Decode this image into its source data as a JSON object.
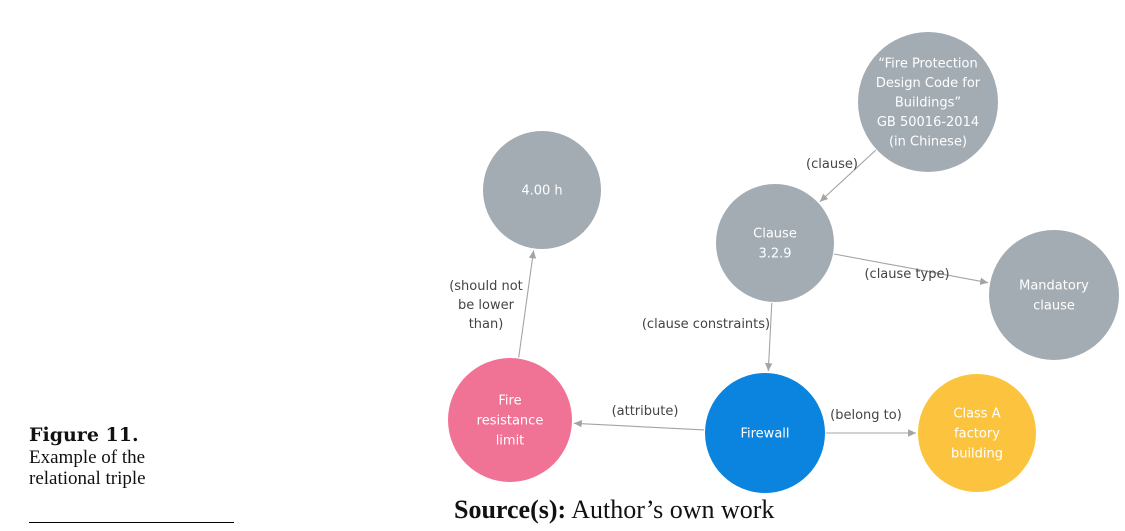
{
  "caption": {
    "title": "Figure 11.",
    "body_lines": [
      "Example of the",
      "relational triple"
    ]
  },
  "source": {
    "label": "Source(s):",
    "text": " Author’s own work"
  },
  "colors": {
    "entity_gray": "#a3abb3",
    "fire_resistance_pink": "#f07396",
    "firewall_blue": "#0a84de",
    "class_a_yellow": "#fcc43e",
    "edge_gray": "#a4a4a4"
  },
  "diagram": {
    "nodes": [
      {
        "id": "code",
        "lines": [
          "“Fire Protection",
          "Design Code for",
          "Buildings”",
          "GB 50016-2014",
          "(in Chinese)"
        ],
        "color_key": "entity_gray"
      },
      {
        "id": "hours",
        "lines": [
          "4.00 h"
        ],
        "color_key": "entity_gray"
      },
      {
        "id": "clause",
        "lines": [
          "Clause",
          "3.2.9"
        ],
        "color_key": "entity_gray"
      },
      {
        "id": "mandatory",
        "lines": [
          "Mandatory",
          "clause"
        ],
        "color_key": "entity_gray"
      },
      {
        "id": "fire-resistance",
        "lines": [
          "Fire",
          "resistance",
          "limit"
        ],
        "color_key": "fire_resistance_pink"
      },
      {
        "id": "firewall",
        "lines": [
          "Firewall"
        ],
        "color_key": "firewall_blue"
      },
      {
        "id": "class-a",
        "lines": [
          "Class A",
          "factory",
          "building"
        ],
        "color_key": "class_a_yellow"
      }
    ],
    "edges": [
      {
        "id": "code-clause",
        "from": "code",
        "to": "clause",
        "lines": [
          "(clause)"
        ]
      },
      {
        "id": "clause-mandatory",
        "from": "clause",
        "to": "mandatory",
        "lines": [
          "(clause type)"
        ]
      },
      {
        "id": "clause-firewall",
        "from": "clause",
        "to": "firewall",
        "lines": [
          "(clause constraints)"
        ]
      },
      {
        "id": "fire-hours",
        "from": "fire-resistance",
        "to": "hours",
        "lines": [
          "(should not",
          "be lower",
          "than)"
        ]
      },
      {
        "id": "firewall-fire",
        "from": "firewall",
        "to": "fire-resistance",
        "lines": [
          "(attribute)"
        ]
      },
      {
        "id": "firewall-class",
        "from": "firewall",
        "to": "class-a",
        "lines": [
          "(belong to)"
        ]
      }
    ]
  }
}
